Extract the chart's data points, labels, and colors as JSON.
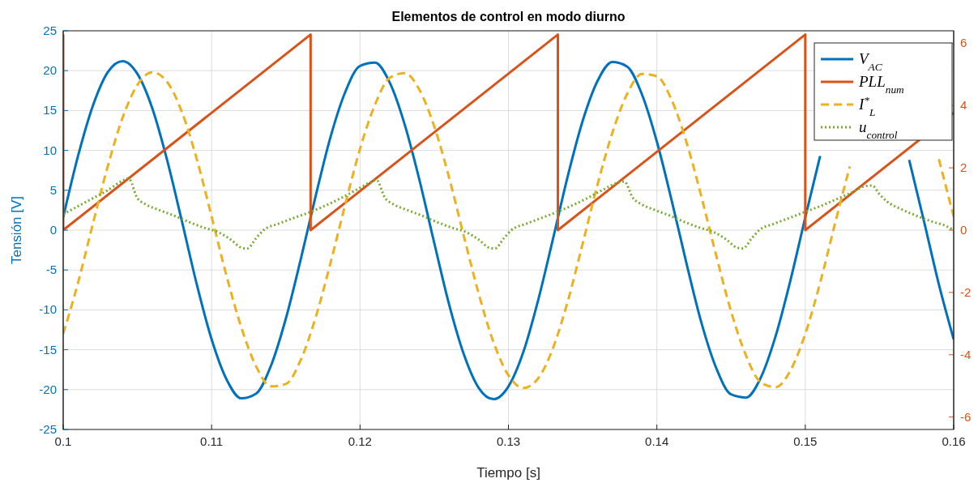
{
  "chart_data": {
    "type": "line",
    "title": "Elementos de control en modo diurno",
    "xlabel": "Tiempo [s]",
    "ylabel": "Tensión [V]",
    "xlim": [
      0.1,
      0.16
    ],
    "xticks": [
      0.1,
      0.11,
      0.12,
      0.13,
      0.14,
      0.15,
      0.16
    ],
    "ylim": [
      -25,
      25
    ],
    "yticks": [
      -25,
      -20,
      -15,
      -10,
      -5,
      0,
      5,
      10,
      15,
      20,
      25
    ],
    "y2lim": [
      -6.4,
      6.4
    ],
    "y2ticks": [
      -6,
      -4,
      -2,
      0,
      2,
      4,
      6
    ],
    "grid": true,
    "legend": "top right",
    "series": [
      {
        "name": "V$_{AC}$",
        "color": "#0072bd",
        "line_style": "solid",
        "x": [
          0.1,
          0.101,
          0.102,
          0.103,
          0.104,
          0.105,
          0.106,
          0.107,
          0.108,
          0.109,
          0.11,
          0.111,
          0.112,
          0.113,
          0.114,
          0.115,
          0.116,
          0.117,
          0.118,
          0.119,
          0.12,
          0.121,
          0.122,
          0.123,
          0.124,
          0.125,
          0.126,
          0.127,
          0.128,
          0.129,
          0.13,
          0.131,
          0.132,
          0.133,
          0.134,
          0.135,
          0.136,
          0.137,
          0.138,
          0.139,
          0.14,
          0.141,
          0.142,
          0.143,
          0.144,
          0.145,
          0.146,
          0.147,
          0.148,
          0.149,
          0.15,
          0.151,
          0.152,
          0.153,
          0.154,
          0.155,
          0.156,
          0.157,
          0.158,
          0.159,
          0.16
        ],
        "values": [
          1.6,
          9.3,
          15.6,
          19.8,
          21.2,
          19.6,
          15.3,
          8.8,
          1.1,
          -6.8,
          -13.7,
          -18.7,
          -21.1,
          -20.5,
          -17,
          -11.1,
          -3.7,
          4.2,
          11.6,
          17.3,
          20.6,
          21,
          18.5,
          13.3,
          6.3,
          -1.6,
          -9.3,
          -15.6,
          -19.8,
          -21.2,
          -19.6,
          -15.3,
          -8.8,
          -1.1,
          6.8,
          13.7,
          18.7,
          21.1,
          20.5,
          17,
          11.1,
          3.7,
          -4.2,
          -11.6,
          -17.3,
          -20.6,
          -21,
          -18.5,
          -13.3,
          -6.3,
          1.6,
          9.3,
          null,
          null,
          null,
          null,
          null,
          8.8,
          1.1,
          -6.8,
          -13.7
        ]
      },
      {
        "name": "PLL$_{num}$",
        "color": "#d95319",
        "line_style": "solid",
        "axis": "y2",
        "x": [
          0.1,
          0.1,
          0.11667,
          0.11667,
          0.13333,
          0.13333,
          0.15,
          0.15,
          0.16
        ],
        "values": [
          6.28,
          0,
          6.28,
          0,
          6.28,
          0,
          6.28,
          0,
          3.77
        ]
      },
      {
        "name": "I$^{*}$$_{L}$",
        "color": "#edb120",
        "line_style": "dashed",
        "x": [
          0.1,
          0.101,
          0.102,
          0.103,
          0.104,
          0.105,
          0.106,
          0.107,
          0.108,
          0.109,
          0.11,
          0.111,
          0.112,
          0.113,
          0.114,
          0.115,
          0.116,
          0.117,
          0.118,
          0.119,
          0.12,
          0.121,
          0.122,
          0.123,
          0.124,
          0.125,
          0.126,
          0.127,
          0.128,
          0.129,
          0.13,
          0.131,
          0.132,
          0.133,
          0.134,
          0.135,
          0.136,
          0.137,
          0.138,
          0.139,
          0.14,
          0.141,
          0.142,
          0.143,
          0.144,
          0.145,
          0.146,
          0.147,
          0.148,
          0.149,
          0.15,
          0.151,
          0.152,
          0.153,
          0.154,
          0.155,
          0.156,
          0.157,
          0.158,
          0.159,
          0.16
        ],
        "values": [
          -13,
          -6.6,
          0.8,
          8,
          14.1,
          18.2,
          19.8,
          18.6,
          14.8,
          8.9,
          1.7,
          -5.7,
          -12.2,
          -17.1,
          -19.6,
          -19.3,
          -16.3,
          -11,
          -4.2,
          3.2,
          10.2,
          15.7,
          19.1,
          19.7,
          17.6,
          13,
          6.6,
          -0.8,
          -8,
          -14.1,
          -18.2,
          -19.8,
          -18.6,
          -14.8,
          -8.9,
          -1.7,
          5.7,
          12.2,
          17.1,
          19.6,
          19.3,
          16.3,
          11,
          4.2,
          -3.2,
          -10.2,
          -15.7,
          -19.1,
          -19.7,
          -17.6,
          -13,
          -6.6,
          0.8,
          8,
          null,
          null,
          null,
          null,
          null,
          8.9,
          1.7
        ]
      },
      {
        "name": "u$_{control}$",
        "color": "#77ac30",
        "line_style": "dotted",
        "x": [
          0.1,
          0.101,
          0.102,
          0.103,
          0.104,
          0.1044,
          0.105,
          0.1055,
          0.1065,
          0.1075,
          0.1085,
          0.1095,
          0.1105,
          0.1113,
          0.112,
          0.1124,
          0.113,
          0.1135,
          0.1145,
          0.1155,
          0.1167,
          0.1177,
          0.1187,
          0.1197,
          0.1207,
          0.1211,
          0.1217,
          0.1222,
          0.1232,
          0.1242,
          0.1252,
          0.1262,
          0.1272,
          0.128,
          0.1287,
          0.1291,
          0.1297,
          0.1302,
          0.1312,
          0.1322,
          0.1333,
          0.1343,
          0.1353,
          0.1363,
          0.1373,
          0.1378,
          0.1384,
          0.1389,
          0.1399,
          0.1409,
          0.1419,
          0.1429,
          0.1439,
          0.1447,
          0.1454,
          0.1458,
          0.1464,
          0.1469,
          0.1479,
          0.1489,
          0.15,
          0.151,
          0.152,
          0.153,
          0.154,
          0.1545,
          0.155,
          0.1555,
          0.1565,
          0.1575,
          0.1585,
          0.1595,
          0.16
        ],
        "values": [
          2,
          3,
          4,
          5,
          6.2,
          6.5,
          4,
          3.3,
          2.5,
          1.8,
          1,
          0.3,
          -0.3,
          -1.2,
          -2.2,
          -2.3,
          -1,
          0,
          0.8,
          1.5,
          2.3,
          3.1,
          4,
          5,
          6,
          6.3,
          4,
          3.3,
          2.5,
          1.8,
          1,
          0.3,
          -0.3,
          -1.2,
          -2.2,
          -2.3,
          -1,
          0,
          0.8,
          1.5,
          2.3,
          3.1,
          4,
          5,
          5.9,
          6.1,
          4,
          3.3,
          2.5,
          1.8,
          1,
          0.3,
          -0.3,
          -1.2,
          -2.2,
          -2.3,
          -1,
          0,
          0.8,
          1.5,
          2.3,
          3,
          3.8,
          4.6,
          5.5,
          5.6,
          4.5,
          3.6,
          2.6,
          1.8,
          1.1,
          0.5,
          0
        ]
      }
    ]
  }
}
